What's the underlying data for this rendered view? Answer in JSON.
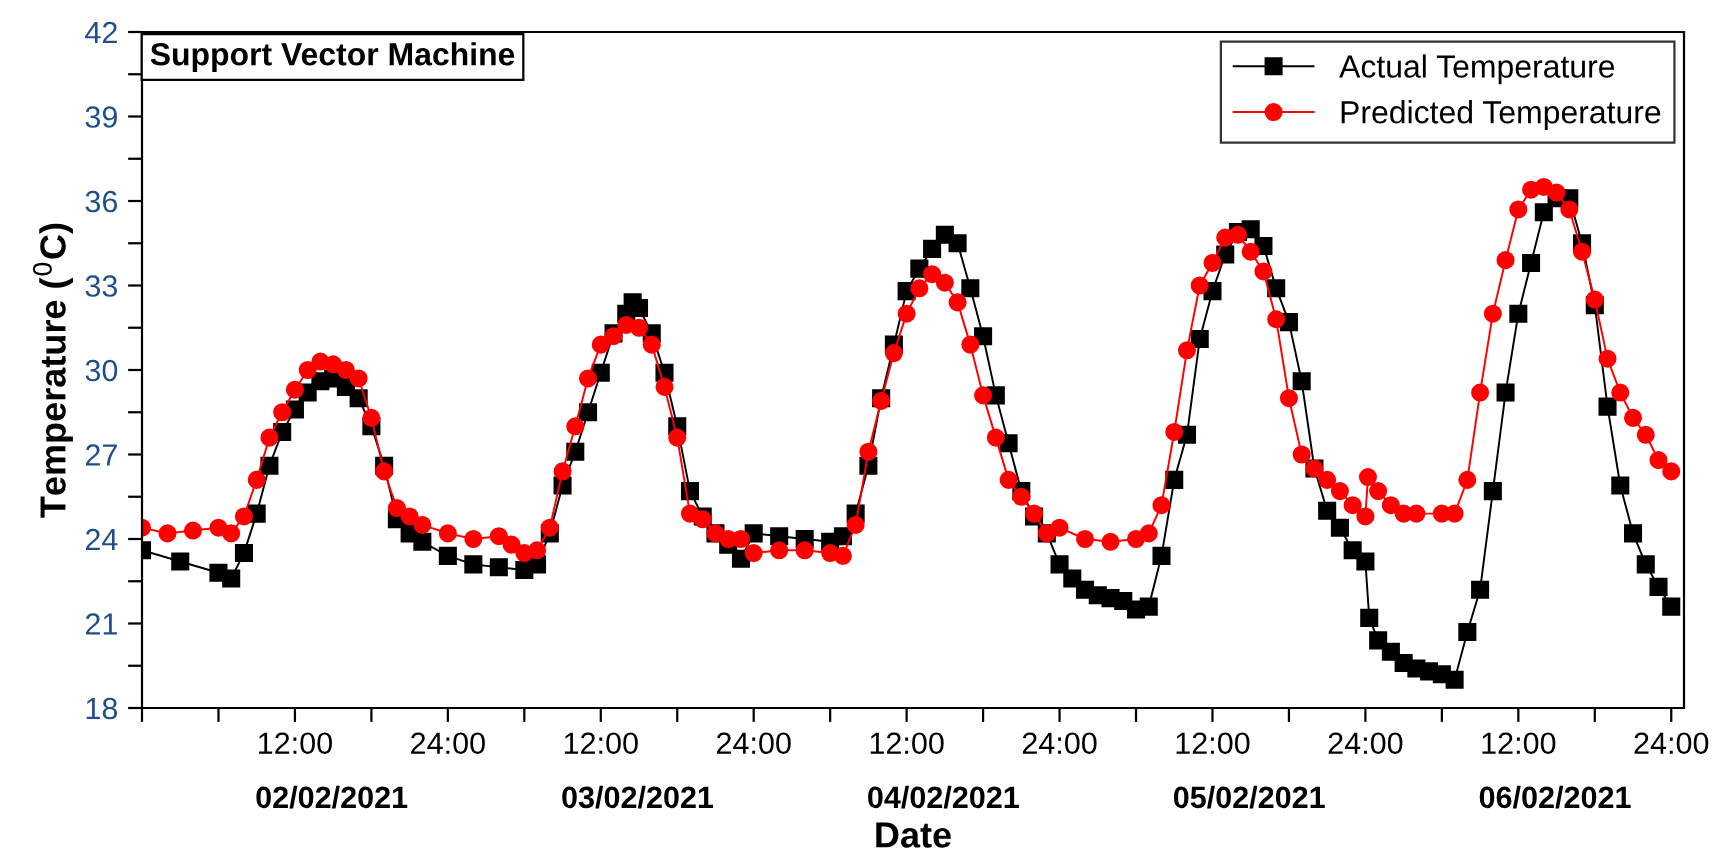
{
  "chart_data": {
    "type": "line",
    "title": "Support Vector Machine",
    "xlabel": "Date",
    "ylabel": "Temperature ($^{0}$C)",
    "xlim": [
      "2021-02-02T00:00",
      "2021-02-07T01:00"
    ],
    "ylim": [
      18,
      42
    ],
    "xticks": [
      {
        "value": "2021-02-02T00:00",
        "label": null
      },
      {
        "value": "2021-02-02T06:00",
        "label": null
      },
      {
        "value": "2021-02-02T12:00",
        "label": "12:00"
      },
      {
        "value": "2021-02-02T18:00",
        "label": null
      },
      {
        "value": "2021-02-03T00:00",
        "label": "24:00"
      },
      {
        "value": "2021-02-03T06:00",
        "label": null
      },
      {
        "value": "2021-02-03T12:00",
        "label": "12:00"
      },
      {
        "value": "2021-02-03T18:00",
        "label": null
      },
      {
        "value": "2021-02-04T00:00",
        "label": "24:00"
      },
      {
        "value": "2021-02-04T06:00",
        "label": null
      },
      {
        "value": "2021-02-04T12:00",
        "label": "12:00"
      },
      {
        "value": "2021-02-04T18:00",
        "label": null
      },
      {
        "value": "2021-02-05T00:00",
        "label": "24:00"
      },
      {
        "value": "2021-02-05T06:00",
        "label": null
      },
      {
        "value": "2021-02-05T12:00",
        "label": "12:00"
      },
      {
        "value": "2021-02-05T18:00",
        "label": null
      },
      {
        "value": "2021-02-06T00:00",
        "label": "24:00"
      },
      {
        "value": "2021-02-06T06:00",
        "label": null
      },
      {
        "value": "2021-02-06T12:00",
        "label": "12:00"
      },
      {
        "value": "2021-02-06T18:00",
        "label": null
      },
      {
        "value": "2021-02-07T00:00",
        "label": "24:00"
      }
    ],
    "yticks": [
      18,
      {
        "value": 19.5,
        "label": null
      },
      21,
      {
        "value": 22.5,
        "label": null
      },
      24,
      {
        "value": 25.5,
        "label": null
      },
      27,
      {
        "value": 28.5,
        "label": null
      },
      30,
      {
        "value": 31.5,
        "label": null
      },
      33,
      {
        "value": 34.5,
        "label": null
      },
      36,
      {
        "value": 37.5,
        "label": null
      },
      39,
      {
        "value": 40.5,
        "label": null
      },
      42
    ],
    "annotations": [
      "02/02/2021",
      "03/02/2021",
      "04/02/2021",
      "05/02/2021",
      "06/02/2021"
    ],
    "grid": false,
    "legend": "top right",
    "line_style": "solid",
    "series": [
      {
        "name": "Actual Temperature",
        "color": "#000000",
        "marker": "square",
        "x": [
          "2021-02-02T00:00",
          "2021-02-02T03:00",
          "2021-02-02T06:00",
          "2021-02-02T07:00",
          "2021-02-02T08:00",
          "2021-02-02T09:00",
          "2021-02-02T10:00",
          "2021-02-02T11:00",
          "2021-02-02T12:00",
          "2021-02-02T13:00",
          "2021-02-02T14:00",
          "2021-02-02T15:00",
          "2021-02-02T16:00",
          "2021-02-02T17:00",
          "2021-02-02T18:00",
          "2021-02-02T19:00",
          "2021-02-02T20:00",
          "2021-02-02T21:00",
          "2021-02-02T22:00",
          "2021-02-03T00:00",
          "2021-02-03T02:00",
          "2021-02-03T04:00",
          "2021-02-03T06:00",
          "2021-02-03T07:00",
          "2021-02-03T08:00",
          "2021-02-03T09:00",
          "2021-02-03T10:00",
          "2021-02-03T11:00",
          "2021-02-03T12:00",
          "2021-02-03T13:00",
          "2021-02-03T14:00",
          "2021-02-03T14:30",
          "2021-02-03T15:00",
          "2021-02-03T16:00",
          "2021-02-03T17:00",
          "2021-02-03T18:00",
          "2021-02-03T19:00",
          "2021-02-03T20:00",
          "2021-02-03T21:00",
          "2021-02-03T22:00",
          "2021-02-03T23:00",
          "2021-02-04T00:00",
          "2021-02-04T02:00",
          "2021-02-04T04:00",
          "2021-02-04T06:00",
          "2021-02-04T07:00",
          "2021-02-04T08:00",
          "2021-02-04T09:00",
          "2021-02-04T10:00",
          "2021-02-04T11:00",
          "2021-02-04T12:00",
          "2021-02-04T13:00",
          "2021-02-04T14:00",
          "2021-02-04T15:00",
          "2021-02-04T16:00",
          "2021-02-04T17:00",
          "2021-02-04T18:00",
          "2021-02-04T19:00",
          "2021-02-04T20:00",
          "2021-02-04T21:00",
          "2021-02-04T22:00",
          "2021-02-04T23:00",
          "2021-02-05T00:00",
          "2021-02-05T01:00",
          "2021-02-05T02:00",
          "2021-02-05T03:00",
          "2021-02-05T04:00",
          "2021-02-05T05:00",
          "2021-02-05T06:00",
          "2021-02-05T07:00",
          "2021-02-05T08:00",
          "2021-02-05T09:00",
          "2021-02-05T10:00",
          "2021-02-05T11:00",
          "2021-02-05T12:00",
          "2021-02-05T13:00",
          "2021-02-05T14:00",
          "2021-02-05T15:00",
          "2021-02-05T16:00",
          "2021-02-05T17:00",
          "2021-02-05T18:00",
          "2021-02-05T19:00",
          "2021-02-05T20:00",
          "2021-02-05T21:00",
          "2021-02-05T22:00",
          "2021-02-05T23:00",
          "2021-02-06T00:00",
          "2021-02-06T00:18",
          "2021-02-06T01:00",
          "2021-02-06T02:00",
          "2021-02-06T03:00",
          "2021-02-06T04:00",
          "2021-02-06T05:00",
          "2021-02-06T06:00",
          "2021-02-06T07:00",
          "2021-02-06T08:00",
          "2021-02-06T09:00",
          "2021-02-06T10:00",
          "2021-02-06T11:00",
          "2021-02-06T12:00",
          "2021-02-06T13:00",
          "2021-02-06T14:00",
          "2021-02-06T15:00",
          "2021-02-06T16:00",
          "2021-02-06T17:00",
          "2021-02-06T18:00",
          "2021-02-06T19:00",
          "2021-02-06T20:00",
          "2021-02-06T21:00",
          "2021-02-06T22:00",
          "2021-02-06T23:00",
          "2021-02-07T00:00"
        ],
        "values": [
          23.6,
          23.2,
          22.8,
          22.6,
          23.5,
          24.9,
          26.6,
          27.8,
          28.6,
          29.2,
          29.6,
          29.7,
          29.4,
          29.0,
          28.0,
          26.6,
          24.7,
          24.2,
          23.9,
          23.4,
          23.1,
          23.0,
          22.9,
          23.1,
          24.2,
          25.9,
          27.1,
          28.5,
          29.9,
          31.3,
          32.0,
          32.4,
          32.2,
          31.3,
          29.9,
          28.0,
          25.7,
          24.8,
          24.2,
          23.8,
          23.3,
          24.2,
          24.1,
          24.0,
          23.9,
          24.1,
          24.9,
          26.6,
          29.0,
          30.9,
          32.8,
          33.6,
          34.3,
          34.8,
          34.5,
          32.9,
          31.2,
          29.1,
          27.4,
          25.7,
          24.8,
          24.2,
          23.1,
          22.6,
          22.2,
          22.0,
          21.9,
          21.8,
          21.5,
          21.6,
          23.4,
          26.1,
          27.7,
          31.1,
          32.8,
          34.1,
          34.9,
          35.0,
          34.4,
          32.9,
          31.7,
          29.6,
          26.5,
          25.0,
          24.4,
          23.6,
          23.2,
          21.2,
          20.4,
          20.0,
          19.6,
          19.4,
          19.3,
          19.2,
          19.0,
          20.7,
          22.2,
          25.7,
          29.2,
          32.0,
          33.8,
          35.6,
          36.1,
          36.1,
          34.5,
          32.3,
          28.7,
          25.9,
          24.2,
          23.1,
          22.3,
          21.6
        ]
      },
      {
        "name": "Predicted Temperature",
        "color": "#ff0000",
        "marker": "circle",
        "x": [
          "2021-02-02T00:00",
          "2021-02-02T02:00",
          "2021-02-02T04:00",
          "2021-02-02T06:00",
          "2021-02-02T07:00",
          "2021-02-02T08:00",
          "2021-02-02T09:00",
          "2021-02-02T10:00",
          "2021-02-02T11:00",
          "2021-02-02T12:00",
          "2021-02-02T13:00",
          "2021-02-02T14:00",
          "2021-02-02T15:00",
          "2021-02-02T16:00",
          "2021-02-02T17:00",
          "2021-02-02T18:00",
          "2021-02-02T19:00",
          "2021-02-02T20:00",
          "2021-02-02T21:00",
          "2021-02-02T22:00",
          "2021-02-03T00:00",
          "2021-02-03T02:00",
          "2021-02-03T04:00",
          "2021-02-03T05:00",
          "2021-02-03T06:00",
          "2021-02-03T07:00",
          "2021-02-03T08:00",
          "2021-02-03T09:00",
          "2021-02-03T10:00",
          "2021-02-03T11:00",
          "2021-02-03T12:00",
          "2021-02-03T13:00",
          "2021-02-03T14:00",
          "2021-02-03T15:00",
          "2021-02-03T16:00",
          "2021-02-03T17:00",
          "2021-02-03T18:00",
          "2021-02-03T19:00",
          "2021-02-03T20:00",
          "2021-02-03T21:00",
          "2021-02-03T22:00",
          "2021-02-03T23:00",
          "2021-02-04T00:00",
          "2021-02-04T02:00",
          "2021-02-04T04:00",
          "2021-02-04T06:00",
          "2021-02-04T07:00",
          "2021-02-04T08:00",
          "2021-02-04T09:00",
          "2021-02-04T10:00",
          "2021-02-04T11:00",
          "2021-02-04T12:00",
          "2021-02-04T13:00",
          "2021-02-04T14:00",
          "2021-02-04T15:00",
          "2021-02-04T16:00",
          "2021-02-04T17:00",
          "2021-02-04T18:00",
          "2021-02-04T19:00",
          "2021-02-04T20:00",
          "2021-02-04T21:00",
          "2021-02-04T22:00",
          "2021-02-04T23:00",
          "2021-02-05T00:00",
          "2021-02-05T02:00",
          "2021-02-05T04:00",
          "2021-02-05T06:00",
          "2021-02-05T07:00",
          "2021-02-05T08:00",
          "2021-02-05T09:00",
          "2021-02-05T10:00",
          "2021-02-05T11:00",
          "2021-02-05T12:00",
          "2021-02-05T13:00",
          "2021-02-05T14:00",
          "2021-02-05T15:00",
          "2021-02-05T16:00",
          "2021-02-05T17:00",
          "2021-02-05T18:00",
          "2021-02-05T19:00",
          "2021-02-05T20:00",
          "2021-02-05T21:00",
          "2021-02-05T22:00",
          "2021-02-05T23:00",
          "2021-02-06T00:00",
          "2021-02-06T00:12",
          "2021-02-06T01:00",
          "2021-02-06T02:00",
          "2021-02-06T03:00",
          "2021-02-06T04:00",
          "2021-02-06T06:00",
          "2021-02-06T07:00",
          "2021-02-06T08:00",
          "2021-02-06T09:00",
          "2021-02-06T10:00",
          "2021-02-06T11:00",
          "2021-02-06T12:00",
          "2021-02-06T13:00",
          "2021-02-06T14:00",
          "2021-02-06T15:00",
          "2021-02-06T16:00",
          "2021-02-06T17:00",
          "2021-02-06T18:00",
          "2021-02-06T19:00",
          "2021-02-06T20:00",
          "2021-02-06T21:00",
          "2021-02-06T22:00",
          "2021-02-06T23:00",
          "2021-02-07T00:00"
        ],
        "values": [
          24.4,
          24.2,
          24.3,
          24.4,
          24.2,
          24.8,
          26.1,
          27.6,
          28.5,
          29.3,
          30.0,
          30.3,
          30.2,
          30.0,
          29.7,
          28.3,
          26.4,
          25.1,
          24.8,
          24.5,
          24.2,
          24.0,
          24.1,
          23.8,
          23.5,
          23.6,
          24.4,
          26.4,
          28.0,
          29.7,
          30.9,
          31.2,
          31.6,
          31.5,
          30.9,
          29.4,
          27.6,
          24.9,
          24.7,
          24.2,
          24.0,
          24.0,
          23.5,
          23.6,
          23.6,
          23.5,
          23.4,
          24.5,
          27.1,
          28.9,
          30.6,
          32.0,
          32.9,
          33.4,
          33.1,
          32.4,
          30.9,
          29.1,
          27.6,
          26.1,
          25.5,
          24.9,
          24.2,
          24.4,
          24.0,
          23.9,
          24.0,
          24.2,
          25.2,
          27.8,
          30.7,
          33.0,
          33.8,
          34.7,
          34.8,
          34.2,
          33.5,
          31.8,
          29.0,
          27.0,
          26.5,
          26.1,
          25.7,
          25.2,
          24.8,
          26.2,
          25.7,
          25.2,
          24.9,
          24.9,
          24.9,
          24.9,
          26.1,
          29.2,
          32.0,
          33.9,
          35.7,
          36.4,
          36.5,
          36.3,
          35.7,
          34.2,
          32.5,
          30.4,
          29.2,
          28.3,
          27.7,
          26.8,
          26.4
        ]
      }
    ]
  }
}
